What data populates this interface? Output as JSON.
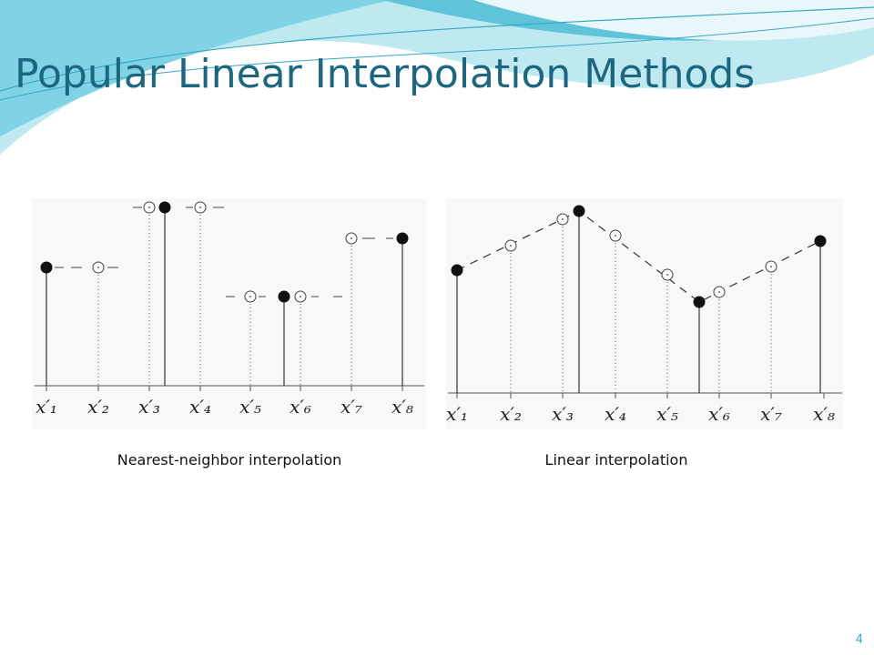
{
  "header": {
    "title": "Popular Linear Interpolation Methods"
  },
  "figures": [
    {
      "caption": "Nearest-neighbor interpolation",
      "axis_labels": [
        "x′₁",
        "x′₂",
        "x′₃",
        "x′₄",
        "x′₅",
        "x′₆",
        "x′₇",
        "x′₈"
      ]
    },
    {
      "caption": "Linear interpolation",
      "axis_labels": [
        "x′₁",
        "x′₂",
        "x′₃",
        "x′₄",
        "x′₅",
        "x′₆",
        "x′₇",
        "x′₈"
      ]
    }
  ],
  "footer": {
    "page_number": "4"
  }
}
